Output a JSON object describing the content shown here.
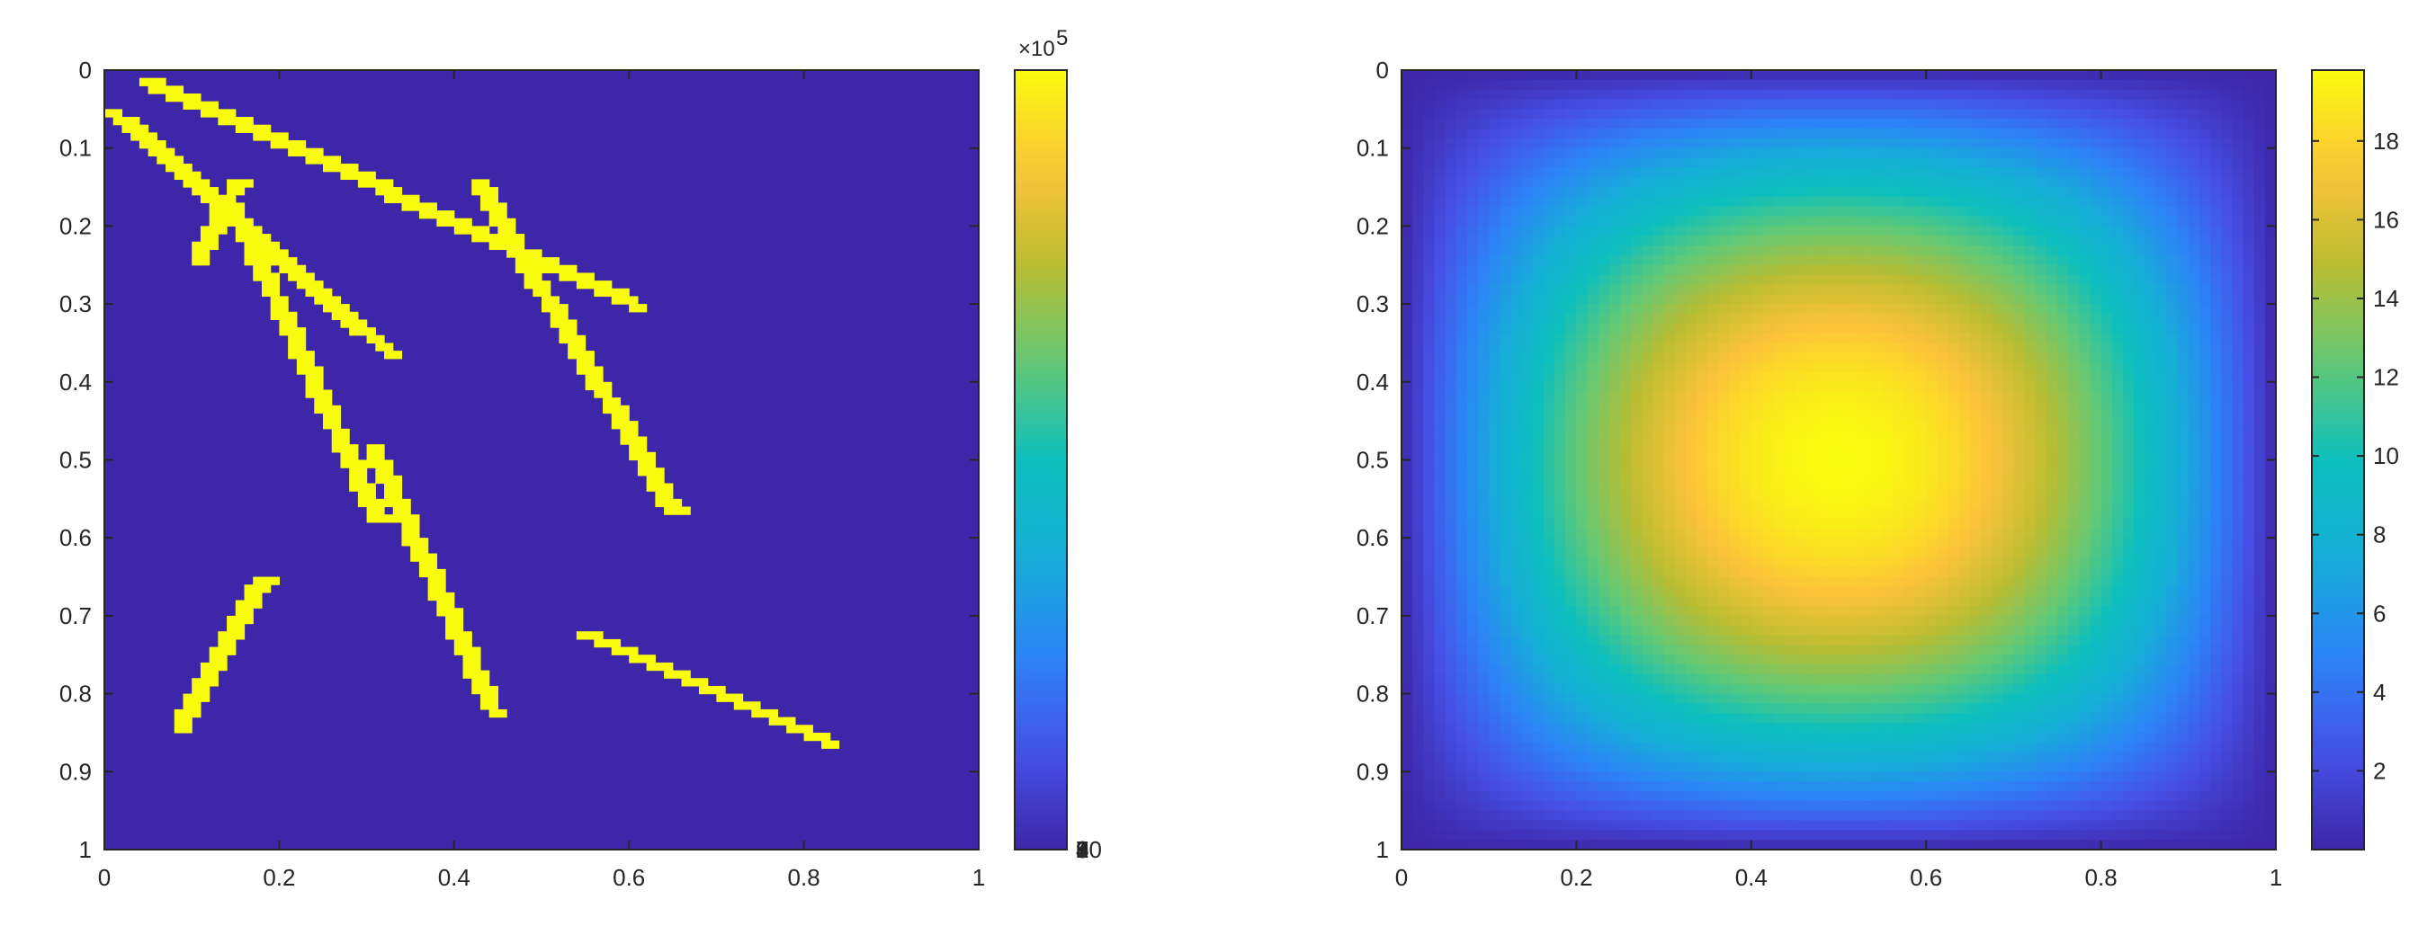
{
  "colors": {
    "background": "#ffffff",
    "axis": "#262626",
    "colormap": "parula",
    "low": "#3d2a9e",
    "high": "#f9fb0e",
    "tick_mark": "#262626"
  },
  "chart_data": [
    {
      "type": "heatmap",
      "title": "",
      "xlabel": "",
      "ylabel": "",
      "xlim": [
        0,
        1
      ],
      "ylim": [
        0,
        1
      ],
      "y_direction": "reverse",
      "grid": false,
      "x_ticks": [
        0,
        0.2,
        0.4,
        0.6,
        0.8,
        1
      ],
      "x_tick_labels": [
        "0",
        "0.2",
        "0.4",
        "0.6",
        "0.8",
        "1"
      ],
      "y_ticks": [
        0,
        0.1,
        0.2,
        0.3,
        0.4,
        0.5,
        0.6,
        0.7,
        0.8,
        0.9,
        1
      ],
      "y_tick_labels": [
        "0",
        "0.1",
        "0.2",
        "0.3",
        "0.4",
        "0.5",
        "0.6",
        "0.7",
        "0.8",
        "0.9",
        "1"
      ],
      "background_value": 0,
      "fracture_value": 1000000,
      "fractures": [
        {
          "x1": 0.04,
          "y1": 0.01,
          "x2": 0.6,
          "y2": 0.3
        },
        {
          "x1": 0.0,
          "y1": 0.05,
          "x2": 0.32,
          "y2": 0.36
        },
        {
          "x1": 0.15,
          "y1": 0.14,
          "x2": 0.1,
          "y2": 0.24
        },
        {
          "x1": 0.14,
          "y1": 0.17,
          "x2": 0.31,
          "y2": 0.58
        },
        {
          "x1": 0.3,
          "y1": 0.48,
          "x2": 0.44,
          "y2": 0.82
        },
        {
          "x1": 0.42,
          "y1": 0.14,
          "x2": 0.65,
          "y2": 0.57
        },
        {
          "x1": 0.18,
          "y1": 0.65,
          "x2": 0.08,
          "y2": 0.84
        },
        {
          "x1": 0.54,
          "y1": 0.72,
          "x2": 0.82,
          "y2": 0.86
        }
      ],
      "colorbar": {
        "min": 0,
        "max": 1000000,
        "ticks": [
          1,
          2,
          3,
          4,
          5,
          6,
          7,
          8,
          9,
          10
        ],
        "tick_labels": [
          "1",
          "2",
          "3",
          "4",
          "5",
          "6",
          "7",
          "8",
          "9",
          "10"
        ],
        "exponent_label": "×10",
        "exponent": "5"
      }
    },
    {
      "type": "heatmap",
      "title": "",
      "xlabel": "",
      "ylabel": "",
      "xlim": [
        0,
        1
      ],
      "ylim": [
        0,
        1
      ],
      "y_direction": "reverse",
      "grid": false,
      "x_ticks": [
        0,
        0.2,
        0.4,
        0.6,
        0.8,
        1
      ],
      "x_tick_labels": [
        "0",
        "0.2",
        "0.4",
        "0.6",
        "0.8",
        "1"
      ],
      "y_ticks": [
        0,
        0.1,
        0.2,
        0.3,
        0.4,
        0.5,
        0.6,
        0.7,
        0.8,
        0.9,
        1
      ],
      "y_tick_labels": [
        "0",
        "0.1",
        "0.2",
        "0.3",
        "0.4",
        "0.5",
        "0.6",
        "0.7",
        "0.8",
        "0.9",
        "1"
      ],
      "field": {
        "description_of_shape": "peak at center",
        "peak_value": 19.8,
        "peak_x": 0.5,
        "peak_y": 0.5,
        "boundary_value": 0
      },
      "colorbar": {
        "min": 0,
        "max": 19.8,
        "ticks": [
          2,
          4,
          6,
          8,
          10,
          12,
          14,
          16,
          18
        ],
        "tick_labels": [
          "2",
          "4",
          "6",
          "8",
          "10",
          "12",
          "14",
          "16",
          "18"
        ]
      }
    }
  ]
}
